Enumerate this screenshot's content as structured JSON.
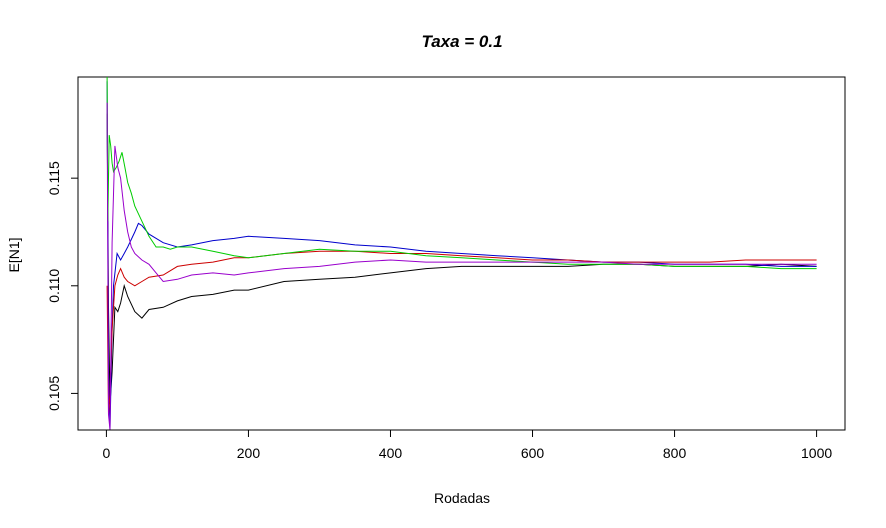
{
  "chart_data": {
    "type": "line",
    "title": "Taxa = 0.1",
    "xlabel": "Rodadas",
    "ylabel": "E[N1]",
    "xlim": [
      -40,
      1040
    ],
    "ylim": [
      0.1033,
      0.1197
    ],
    "x_ticks": [
      0,
      200,
      400,
      600,
      800,
      1000
    ],
    "x_tick_labels": [
      "0",
      "200",
      "400",
      "600",
      "800",
      "1000"
    ],
    "y_ticks": [
      0.105,
      0.11,
      0.115
    ],
    "y_tick_labels": [
      "0.105",
      "0.110",
      "0.115"
    ],
    "grid": false,
    "legend": "none",
    "series": [
      {
        "color": "#000000",
        "x": [
          1,
          3,
          5,
          8,
          12,
          16,
          20,
          25,
          30,
          40,
          50,
          60,
          80,
          100,
          120,
          150,
          180,
          200,
          250,
          300,
          350,
          400,
          450,
          500,
          550,
          600,
          650,
          700,
          750,
          800,
          850,
          900,
          950,
          1000
        ],
        "y": [
          0.118,
          0.109,
          0.1045,
          0.106,
          0.109,
          0.1088,
          0.1092,
          0.11,
          0.1095,
          0.1088,
          0.1085,
          0.1089,
          0.109,
          0.1093,
          0.1095,
          0.1096,
          0.1098,
          0.1098,
          0.1102,
          0.1103,
          0.1104,
          0.1106,
          0.1108,
          0.1109,
          0.1109,
          0.1109,
          0.1109,
          0.111,
          0.111,
          0.1109,
          0.1109,
          0.1109,
          0.111,
          0.1109
        ]
      },
      {
        "color": "#0000cc",
        "x": [
          1,
          3,
          5,
          8,
          10,
          15,
          20,
          25,
          30,
          40,
          45,
          50,
          60,
          80,
          100,
          120,
          150,
          180,
          200,
          250,
          300,
          350,
          400,
          450,
          500,
          550,
          600,
          650,
          700,
          750,
          800,
          850,
          900,
          950,
          1000
        ],
        "y": [
          0.1195,
          0.106,
          0.103,
          0.108,
          0.11,
          0.1115,
          0.1112,
          0.1115,
          0.1118,
          0.1125,
          0.1129,
          0.1128,
          0.1124,
          0.112,
          0.1118,
          0.1119,
          0.1121,
          0.1122,
          0.1123,
          0.1122,
          0.1121,
          0.1119,
          0.1118,
          0.1116,
          0.1115,
          0.1114,
          0.1113,
          0.1112,
          0.1111,
          0.1111,
          0.111,
          0.111,
          0.111,
          0.1109,
          0.1109
        ]
      },
      {
        "color": "#cc0000",
        "x": [
          1,
          3,
          5,
          8,
          12,
          16,
          20,
          25,
          30,
          40,
          50,
          60,
          80,
          100,
          120,
          150,
          180,
          200,
          250,
          300,
          350,
          400,
          450,
          500,
          550,
          600,
          650,
          700,
          750,
          800,
          850,
          900,
          950,
          1000
        ],
        "y": [
          0.11,
          0.104,
          0.105,
          0.108,
          0.11,
          0.1105,
          0.1108,
          0.1104,
          0.1102,
          0.11,
          0.1102,
          0.1104,
          0.1105,
          0.1109,
          0.111,
          0.1111,
          0.1113,
          0.1113,
          0.1115,
          0.1116,
          0.1116,
          0.1115,
          0.1115,
          0.1114,
          0.1113,
          0.1112,
          0.1112,
          0.1111,
          0.1111,
          0.1111,
          0.1111,
          0.1112,
          0.1112,
          0.1112
        ]
      },
      {
        "color": "#00cc00",
        "x": [
          1,
          2,
          4,
          6,
          8,
          10,
          14,
          18,
          22,
          26,
          30,
          35,
          40,
          50,
          60,
          70,
          80,
          90,
          100,
          120,
          150,
          180,
          200,
          250,
          300,
          350,
          400,
          450,
          500,
          550,
          600,
          650,
          700,
          750,
          800,
          850,
          900,
          950,
          1000
        ],
        "y": [
          0.1197,
          0.113,
          0.117,
          0.1165,
          0.1157,
          0.1153,
          0.1155,
          0.1158,
          0.1162,
          0.1155,
          0.1148,
          0.1143,
          0.1137,
          0.113,
          0.1123,
          0.1118,
          0.1118,
          0.1117,
          0.1118,
          0.1118,
          0.1116,
          0.1114,
          0.1113,
          0.1115,
          0.1117,
          0.1116,
          0.1116,
          0.1114,
          0.1113,
          0.1112,
          0.1111,
          0.111,
          0.111,
          0.111,
          0.1109,
          0.1109,
          0.1109,
          0.1108,
          0.1108
        ]
      },
      {
        "color": "#9900cc",
        "x": [
          1,
          3,
          5,
          8,
          12,
          16,
          20,
          25,
          30,
          35,
          40,
          50,
          60,
          70,
          80,
          100,
          120,
          150,
          180,
          200,
          250,
          300,
          350,
          400,
          450,
          500,
          550,
          600,
          650,
          700,
          750,
          800,
          850,
          900,
          950,
          1000
        ],
        "y": [
          0.1185,
          0.104,
          0.103,
          0.112,
          0.1165,
          0.1155,
          0.115,
          0.1135,
          0.1125,
          0.1118,
          0.1115,
          0.1112,
          0.111,
          0.1106,
          0.1102,
          0.1103,
          0.1105,
          0.1106,
          0.1105,
          0.1106,
          0.1108,
          0.1109,
          0.1111,
          0.1112,
          0.1111,
          0.1111,
          0.1111,
          0.1111,
          0.1111,
          0.1111,
          0.111,
          0.111,
          0.111,
          0.111,
          0.111,
          0.111
        ]
      }
    ]
  }
}
